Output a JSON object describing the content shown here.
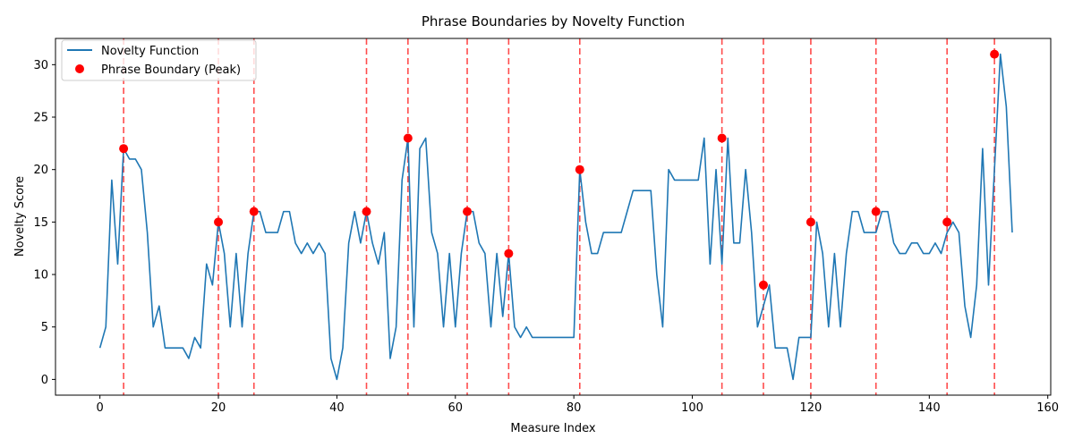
{
  "chart_data": {
    "type": "line",
    "title": "Phrase Boundaries by Novelty Function",
    "xlabel": "Measure Index",
    "ylabel": "Novelty Score",
    "xlim": [
      -7.5,
      160.5
    ],
    "ylim": [
      -1.5,
      32.5
    ],
    "xticks": [
      0,
      20,
      40,
      60,
      80,
      100,
      120,
      140,
      160
    ],
    "yticks": [
      0,
      5,
      10,
      15,
      20,
      25,
      30
    ],
    "grid": false,
    "legend_position": "top-left",
    "series": [
      {
        "name": "Novelty Function",
        "kind": "line",
        "color": "#1f77b4",
        "values": [
          3,
          5,
          19,
          11,
          22,
          21,
          21,
          20,
          14,
          5,
          7,
          3,
          3,
          3,
          3,
          2,
          4,
          3,
          11,
          9,
          15,
          12,
          5,
          12,
          5,
          12,
          16,
          16,
          14,
          14,
          14,
          16,
          16,
          13,
          12,
          13,
          12,
          13,
          12,
          2,
          0,
          3,
          13,
          16,
          13,
          16,
          13,
          11,
          14,
          2,
          5,
          19,
          23,
          5,
          22,
          23,
          14,
          12,
          5,
          12,
          5,
          12,
          16,
          16,
          13,
          12,
          5,
          12,
          6,
          12,
          5,
          4,
          5,
          4,
          4,
          4,
          4,
          4,
          4,
          4,
          4,
          20,
          15,
          12,
          12,
          14,
          14,
          14,
          14,
          16,
          18,
          18,
          18,
          18,
          10,
          5,
          20,
          19,
          19,
          19,
          19,
          19,
          23,
          11,
          20,
          11,
          23,
          13,
          13,
          20,
          14,
          5,
          7,
          9,
          3,
          3,
          3,
          0,
          4,
          4,
          4,
          15,
          12,
          5,
          12,
          5,
          12,
          16,
          16,
          14,
          14,
          14,
          16,
          16,
          13,
          12,
          12,
          13,
          13,
          12,
          12,
          13,
          12,
          14,
          15,
          14,
          7,
          4,
          9,
          22,
          9,
          20,
          31,
          26,
          14
        ]
      },
      {
        "name": "Phrase Boundary (Peak)",
        "kind": "scatter",
        "color": "#ff0000",
        "x": [
          4,
          20,
          26,
          45,
          52,
          62,
          69,
          81,
          105,
          112,
          120,
          131,
          143,
          151
        ],
        "y": [
          22,
          15,
          16,
          16,
          23,
          16,
          12,
          20,
          23,
          9,
          15,
          16,
          15,
          31
        ]
      }
    ],
    "vlines": {
      "color": "#ff0000",
      "style": "dashed",
      "x": [
        4,
        20,
        26,
        45,
        52,
        62,
        69,
        81,
        105,
        112,
        120,
        131,
        143,
        151
      ]
    }
  }
}
